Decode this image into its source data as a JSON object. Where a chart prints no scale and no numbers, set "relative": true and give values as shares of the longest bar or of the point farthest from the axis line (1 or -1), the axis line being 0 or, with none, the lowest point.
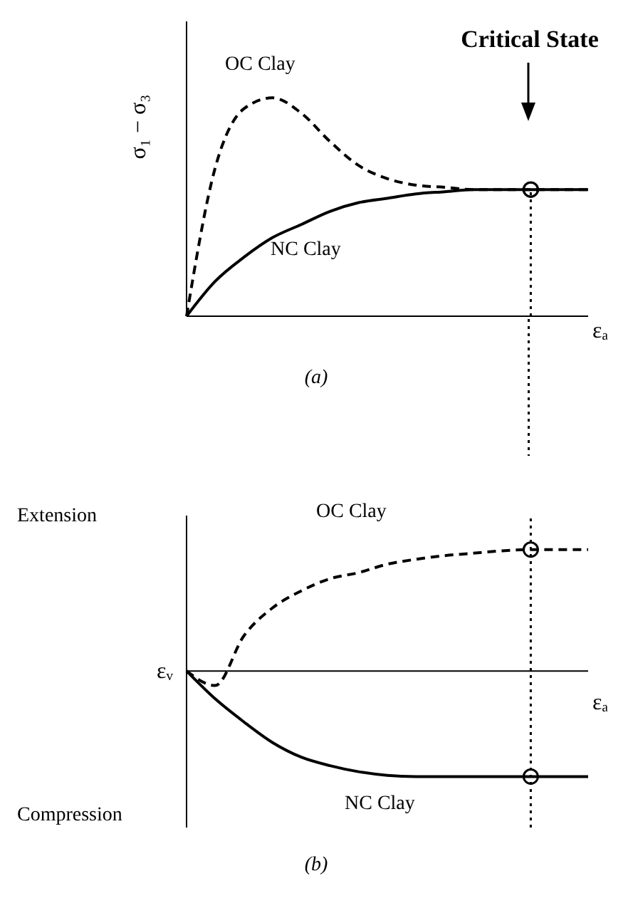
{
  "chart_data": [
    {
      "type": "line",
      "relative": true,
      "ylabel": "σ₁ − σ₃",
      "xlabel": "εₐ",
      "annotations": [
        "Critical State",
        "(a)"
      ],
      "categories": [
        null,
        null,
        null,
        null,
        null,
        null,
        null,
        null,
        null,
        null,
        null,
        null,
        null,
        null,
        null
      ],
      "series": [
        {
          "name": "OC Clay",
          "color": "#000000",
          "line_style": "dashed",
          "values": [
            0,
            0.68,
            0.95,
            1,
            0.93,
            0.8,
            0.69,
            0.63,
            0.6,
            0.59,
            0.58,
            0.58,
            0.58,
            0.58,
            0.58
          ]
        },
        {
          "name": "NC Clay",
          "color": "#000000",
          "line_style": "solid",
          "values": [
            0,
            0.16,
            0.27,
            0.36,
            0.42,
            0.48,
            0.52,
            0.54,
            0.56,
            0.57,
            0.58,
            0.58,
            0.58,
            0.58,
            0.58
          ]
        }
      ]
    },
    {
      "type": "line",
      "relative": true,
      "ylabel": "εᵥ",
      "xlabel": "εₐ",
      "annotations": [
        "Extension",
        "Compression",
        "(b)"
      ],
      "categories": [
        null,
        null,
        null,
        null,
        null,
        null,
        null,
        null,
        null,
        null,
        null,
        null,
        null,
        null,
        null
      ],
      "series": [
        {
          "name": "OC Clay",
          "color": "#000000",
          "line_style": "dashed",
          "values": [
            0,
            -0.12,
            0.29,
            0.52,
            0.66,
            0.76,
            0.81,
            0.88,
            0.92,
            0.95,
            0.97,
            0.99,
            1,
            1,
            1
          ]
        },
        {
          "name": "NC Clay",
          "color": "#000000",
          "line_style": "solid",
          "values": [
            0,
            -0.23,
            -0.42,
            -0.59,
            -0.71,
            -0.78,
            -0.83,
            -0.86,
            -0.87,
            -0.87,
            -0.87,
            -0.87,
            -0.87,
            -0.87,
            -0.87
          ]
        }
      ]
    }
  ]
}
